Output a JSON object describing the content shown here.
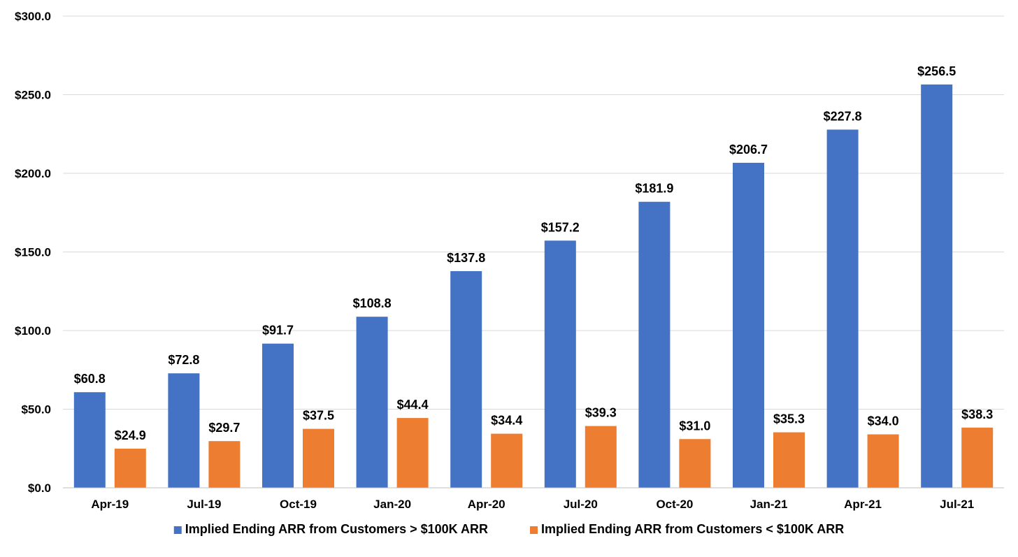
{
  "chart_data": {
    "type": "bar",
    "title": "",
    "xlabel": "",
    "ylabel": "",
    "categories": [
      "Apr-19",
      "Jul-19",
      "Oct-19",
      "Jan-20",
      "Apr-20",
      "Jul-20",
      "Oct-20",
      "Jan-21",
      "Apr-21",
      "Jul-21"
    ],
    "series": [
      {
        "name": "Implied Ending ARR from Customers > $100K ARR",
        "color": "#4472C4",
        "values": [
          60.8,
          72.8,
          91.7,
          108.8,
          137.8,
          157.2,
          181.9,
          206.7,
          227.8,
          256.5
        ],
        "labels": [
          "$60.8",
          "$72.8",
          "$91.7",
          "$108.8",
          "$137.8",
          "$157.2",
          "$181.9",
          "$206.7",
          "$227.8",
          "$256.5"
        ]
      },
      {
        "name": "Implied Ending ARR from Customers < $100K ARR",
        "color": "#ED7D31",
        "values": [
          24.9,
          29.7,
          37.5,
          44.4,
          34.4,
          39.3,
          31.0,
          35.3,
          34.0,
          38.3
        ],
        "labels": [
          "$24.9",
          "$29.7",
          "$37.5",
          "$44.4",
          "$34.4",
          "$39.3",
          "$31.0",
          "$35.3",
          "$34.0",
          "$38.3"
        ]
      }
    ],
    "ylim": [
      0,
      300
    ],
    "yticks": [
      0,
      50,
      100,
      150,
      200,
      250,
      300
    ],
    "ytick_labels": [
      "$0.0",
      "$50.0",
      "$100.0",
      "$150.0",
      "$200.0",
      "$250.0",
      "$300.0"
    ],
    "grid": true,
    "legend": "bottom"
  }
}
